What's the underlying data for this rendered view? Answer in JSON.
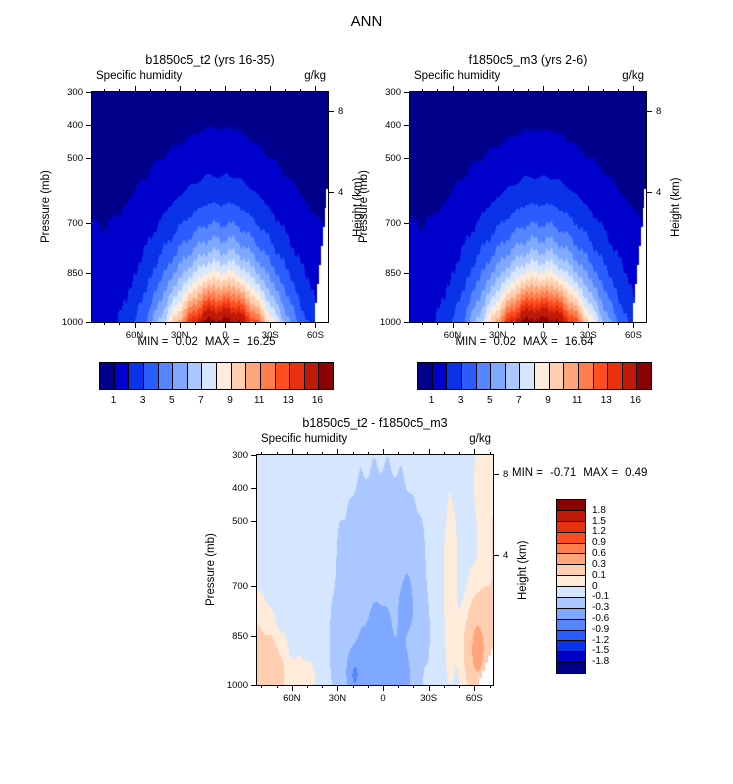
{
  "page": {
    "title": "ANN"
  },
  "palette_blue_red": [
    "#00008B",
    "#0000CD",
    "#0A32E8",
    "#2A5CFF",
    "#5585FF",
    "#7FA8FF",
    "#AAC8FF",
    "#D6E6FF",
    "#FFEBD9",
    "#FFCDAF",
    "#FFA579",
    "#FF7C4C",
    "#FF4D21",
    "#E8320F",
    "#BF1A08",
    "#8B0000"
  ],
  "chart_data": [
    {
      "type": "heatmap",
      "plot_kind": "filled-contour zonal mean, latitude vs pressure",
      "title": "b1850c5_t2 (yrs 16-35)",
      "field_label": "Specific humidity",
      "units": "g/kg",
      "ylabel": "Pressure (mb)",
      "ylabel_right": "Height (km)",
      "y_ticks_mb": [
        300,
        400,
        500,
        700,
        850,
        1000
      ],
      "pressure_range_mb": [
        300,
        1000
      ],
      "height_ticks_km": [
        {
          "label": "8",
          "mb": 358
        },
        {
          "label": "4",
          "mb": 605
        }
      ],
      "x_ticks": [
        {
          "label": "60N",
          "lat": 60
        },
        {
          "label": "30N",
          "lat": 30
        },
        {
          "label": "0",
          "lat": 0
        },
        {
          "label": "30S",
          "lat": -30
        },
        {
          "label": "60S",
          "lat": -60
        }
      ],
      "x_minor_step_deg": 10,
      "lat_range": [
        88.2,
        -68.3
      ],
      "stats": {
        "min_label": "MIN =",
        "min": "0.02",
        "max_label": "MAX =",
        "max": "16.25"
      },
      "contour_levels": [
        1,
        2,
        3,
        4,
        5,
        6,
        7,
        8,
        9,
        10,
        11,
        12,
        13,
        14,
        16
      ],
      "colorbar_orientation": "horizontal",
      "colorbar_tick_labels": [
        "1",
        "3",
        "5",
        "7",
        "9",
        "11",
        "13",
        "16"
      ],
      "colorbar_tick_indices": [
        1,
        3,
        5,
        7,
        9,
        11,
        13,
        15
      ],
      "field_model": {
        "kind": "humidity",
        "qfloor": 1.45,
        "qamp": 15.8,
        "qwidth": 37.5,
        "shift": 2.5,
        "dip": 0.06,
        "dipw": 3.5,
        "tau0": 0.3,
        "tau1": 0.75,
        "topography_white": {
          "lat_start": -60,
          "step_deg": 1.2,
          "step_mb": 58
        }
      }
    },
    {
      "type": "heatmap",
      "plot_kind": "filled-contour zonal mean, latitude vs pressure",
      "title": "f1850c5_m3 (yrs 2-6)",
      "field_label": "Specific humidity",
      "units": "g/kg",
      "ylabel": "Pressure (mb)",
      "ylabel_right": "Height (km)",
      "y_ticks_mb": [
        300,
        400,
        500,
        700,
        850,
        1000
      ],
      "pressure_range_mb": [
        300,
        1000
      ],
      "height_ticks_km": [
        {
          "label": "8",
          "mb": 358
        },
        {
          "label": "4",
          "mb": 605
        }
      ],
      "x_ticks": [
        {
          "label": "60N",
          "lat": 60
        },
        {
          "label": "30N",
          "lat": 30
        },
        {
          "label": "0",
          "lat": 0
        },
        {
          "label": "30S",
          "lat": -30
        },
        {
          "label": "60S",
          "lat": -60
        }
      ],
      "x_minor_step_deg": 10,
      "lat_range": [
        88.2,
        -68.3
      ],
      "stats": {
        "min_label": "MIN =",
        "min": "0.02",
        "max_label": "MAX =",
        "max": "16.64"
      },
      "contour_levels": [
        1,
        2,
        3,
        4,
        5,
        6,
        7,
        8,
        9,
        10,
        11,
        12,
        13,
        14,
        16
      ],
      "colorbar_orientation": "horizontal",
      "colorbar_tick_labels": [
        "1",
        "3",
        "5",
        "7",
        "9",
        "11",
        "13",
        "16"
      ],
      "colorbar_tick_indices": [
        1,
        3,
        5,
        7,
        9,
        11,
        13,
        15
      ],
      "field_model": {
        "kind": "humidity",
        "qfloor": 1.45,
        "qamp": 16.0,
        "qwidth": 38.0,
        "shift": 2.0,
        "dip": 0.05,
        "dipw": 3.5,
        "tau0": 0.295,
        "tau1": 0.75,
        "topography_white": {
          "lat_start": -60,
          "step_deg": 1.2,
          "step_mb": 58
        }
      }
    },
    {
      "type": "heatmap",
      "plot_kind": "filled-contour difference, latitude vs pressure",
      "title": "b1850c5_t2 - f1850c5_m3",
      "field_label": "Specific humidity",
      "units": "g/kg",
      "ylabel": "Pressure (mb)",
      "ylabel_right": "Height (km)",
      "y_ticks_mb": [
        300,
        400,
        500,
        700,
        850,
        1000
      ],
      "pressure_range_mb": [
        300,
        1000
      ],
      "height_ticks_km": [
        {
          "label": "8",
          "mb": 358
        },
        {
          "label": "4",
          "mb": 605
        }
      ],
      "x_ticks": [
        {
          "label": "60N",
          "lat": 60
        },
        {
          "label": "30N",
          "lat": 30
        },
        {
          "label": "0",
          "lat": 0
        },
        {
          "label": "30S",
          "lat": -30
        },
        {
          "label": "60S",
          "lat": -60
        }
      ],
      "x_minor_step_deg": 10,
      "lat_range": [
        82.9,
        -72.3
      ],
      "stats": {
        "min_label": "MIN =",
        "min": "-0.71",
        "max_label": "MAX =",
        "max": "0.49"
      },
      "contour_levels": [
        -1.8,
        -1.5,
        -1.2,
        -0.9,
        -0.6,
        -0.3,
        -0.1,
        0,
        0.1,
        0.3,
        0.6,
        0.9,
        1.2,
        1.5,
        1.8
      ],
      "colorbar_orientation": "vertical",
      "colorbar_tick_labels": [
        "1.8",
        "1.5",
        "1.2",
        "0.9",
        "0.6",
        "0.3",
        "0.1",
        "0",
        "-0.1",
        "-0.3",
        "-0.6",
        "-0.9",
        "-1.2",
        "-1.5",
        "-1.8"
      ],
      "colorbar_tick_indices": [
        1,
        2,
        3,
        4,
        5,
        6,
        7,
        8,
        9,
        10,
        11,
        12,
        13,
        14,
        15
      ],
      "field_model": {
        "kind": "difference",
        "base": -0.06,
        "blobs": [
          [
            -0.18,
            3,
            24,
            0.25,
            0.45
          ],
          [
            -0.1,
            0,
            20,
            0.62,
            0.28
          ],
          [
            -0.22,
            5,
            17,
            0.05,
            0.22
          ],
          [
            -0.38,
            19,
            4.5,
            0.04,
            0.1
          ],
          [
            -0.34,
            -13,
            4.5,
            0.03,
            0.09
          ],
          [
            -0.17,
            -17,
            7,
            0.35,
            0.22
          ],
          [
            0.26,
            74,
            11,
            0.04,
            0.16
          ],
          [
            0.17,
            86,
            14,
            0.12,
            0.3
          ],
          [
            0.15,
            52,
            8,
            0.02,
            0.1
          ],
          [
            0.4,
            -62,
            9,
            0.15,
            0.22
          ],
          [
            0.14,
            -44,
            4.5,
            0.4,
            0.42
          ],
          [
            0.18,
            -78,
            14,
            0.55,
            0.5
          ],
          [
            0.04,
            -68,
            20,
            0.9,
            0.35
          ]
        ],
        "topography_white": {
          "lat_start": -63,
          "step_deg": 2.0,
          "step_mb": 22
        }
      }
    }
  ]
}
